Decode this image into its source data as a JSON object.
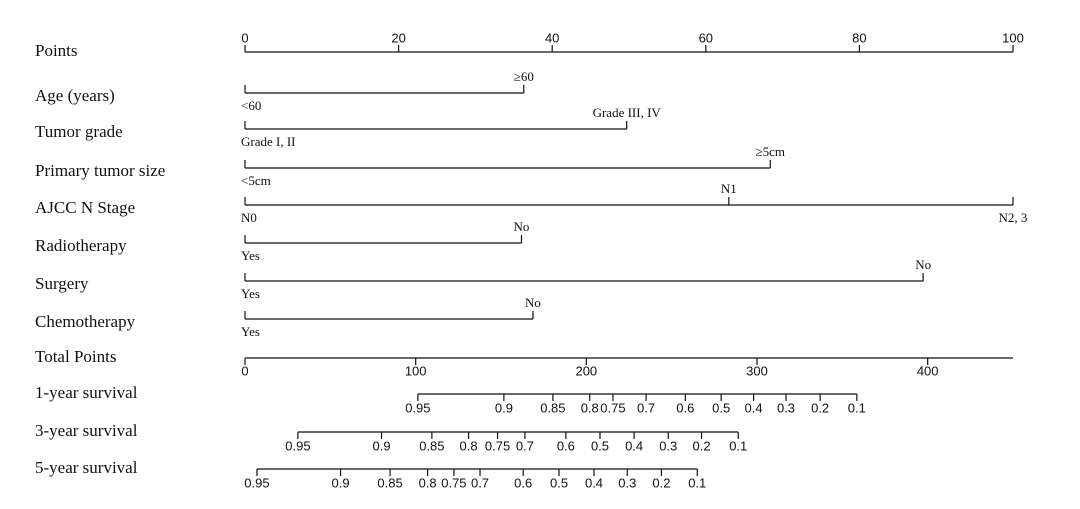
{
  "chart_data": {
    "type": "nomogram",
    "points": {
      "label": "Points",
      "xlim": [
        0,
        100
      ],
      "xticks": [
        0,
        20,
        40,
        60,
        80,
        100
      ]
    },
    "variables": [
      {
        "label": "Age (years)",
        "levels": [
          "<60",
          "≥60"
        ],
        "points": [
          0,
          36.3
        ]
      },
      {
        "label": "Tumor grade",
        "levels": [
          "Grade I, II",
          "Grade III, IV"
        ],
        "points": [
          0,
          49.7
        ]
      },
      {
        "label": "Primary tumor size",
        "levels": [
          "<5cm",
          "≥5cm"
        ],
        "points": [
          0,
          68.4
        ]
      },
      {
        "label": "AJCC N Stage",
        "levels": [
          "N0",
          "N1",
          "N2, 3"
        ],
        "points": [
          0,
          63,
          100
        ]
      },
      {
        "label": "Radiotherapy",
        "levels": [
          "Yes",
          "No"
        ],
        "points": [
          0,
          36
        ]
      },
      {
        "label": "Surgery",
        "levels": [
          "Yes",
          "No"
        ],
        "points": [
          0,
          88.3
        ]
      },
      {
        "label": "Chemotherapy",
        "levels": [
          "Yes",
          "No"
        ],
        "points": [
          0,
          37.5
        ]
      }
    ],
    "total_points": {
      "label": "Total Points",
      "xlim": [
        0,
        450
      ],
      "xticks": [
        0,
        100,
        200,
        300,
        400
      ]
    },
    "survival": [
      {
        "label": "1-year survival",
        "probabilities": [
          0.95,
          0.9,
          0.85,
          0.8,
          0.75,
          0.7,
          0.6,
          0.5,
          0.4,
          0.3,
          0.2,
          0.1
        ],
        "total_points": [
          101.3,
          151.7,
          180.4,
          202,
          215.6,
          235,
          258,
          279,
          298,
          317,
          337,
          358.5
        ]
      },
      {
        "label": "3-year survival",
        "probabilities": [
          0.95,
          0.9,
          0.85,
          0.8,
          0.75,
          0.7,
          0.6,
          0.5,
          0.4,
          0.3,
          0.2,
          0.1
        ],
        "total_points": [
          31,
          80,
          109.5,
          131,
          148,
          164,
          188,
          208,
          228,
          248,
          267.5,
          289
        ]
      },
      {
        "label": "5-year survival",
        "probabilities": [
          0.95,
          0.9,
          0.85,
          0.8,
          0.75,
          0.7,
          0.6,
          0.5,
          0.4,
          0.3,
          0.2,
          0.1
        ],
        "total_points": [
          7,
          56,
          85,
          107,
          122.4,
          137.7,
          163,
          184,
          204.5,
          224,
          244,
          265
        ]
      }
    ]
  }
}
